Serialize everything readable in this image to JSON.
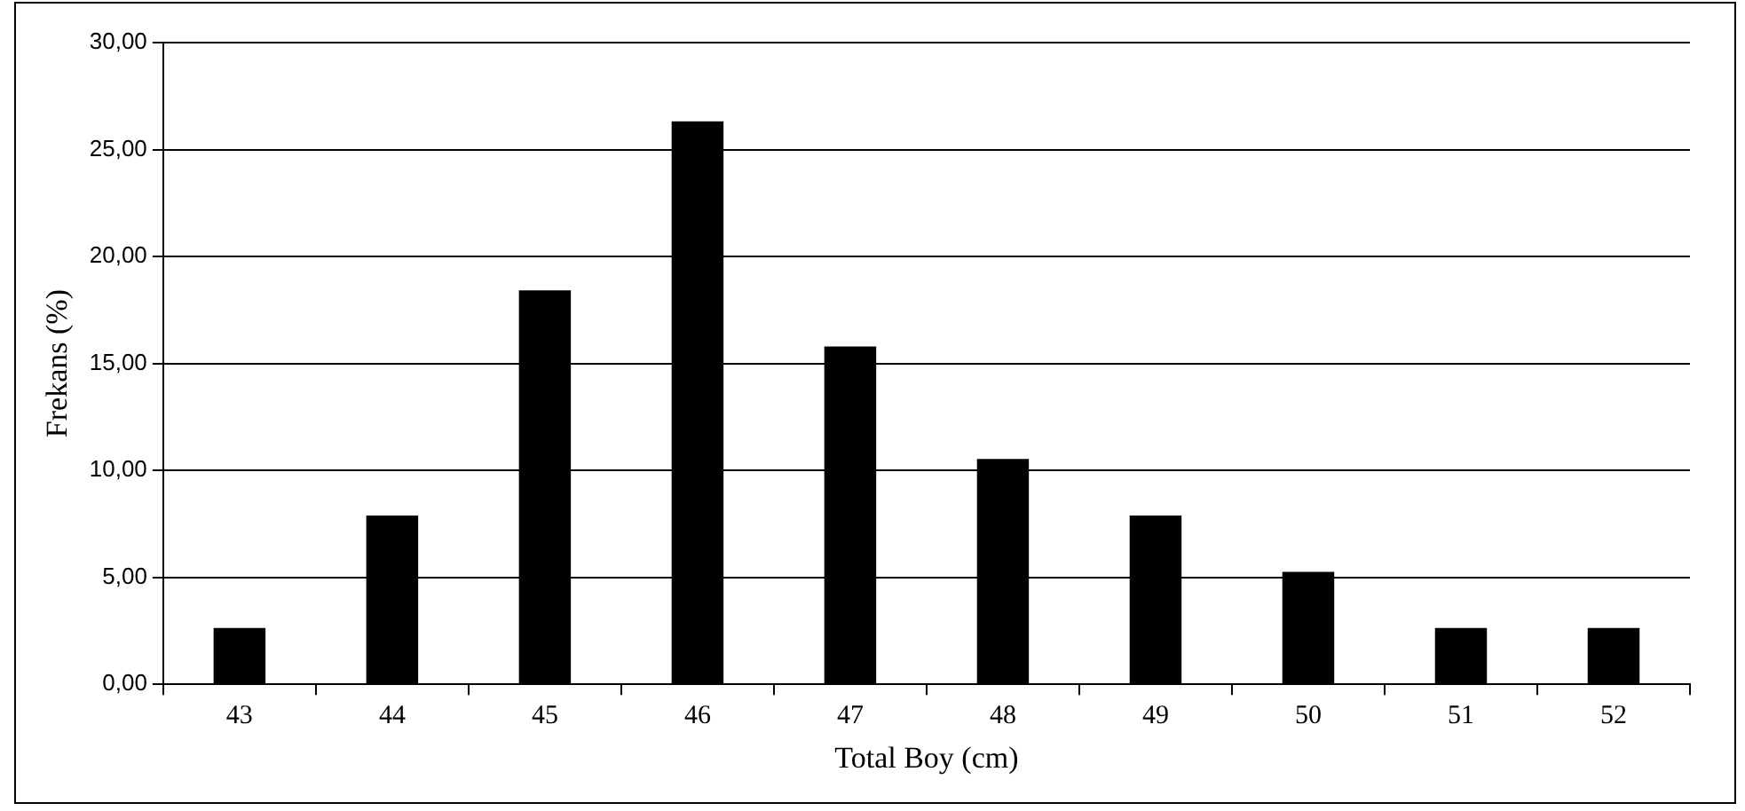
{
  "chart_data": {
    "type": "bar",
    "xlabel": "Total Boy (cm)",
    "ylabel": "Frekans (%)",
    "categories": [
      "43",
      "44",
      "45",
      "46",
      "47",
      "48",
      "49",
      "50",
      "51",
      "52"
    ],
    "values": [
      2.63,
      7.89,
      18.42,
      26.32,
      15.79,
      10.53,
      7.89,
      5.26,
      2.63,
      2.63
    ],
    "color": "#000000",
    "ylim": [
      0,
      30
    ],
    "yticks": [
      {
        "value": 0,
        "label": "0,00"
      },
      {
        "value": 5,
        "label": "5,00"
      },
      {
        "value": 10,
        "label": "10,00"
      },
      {
        "value": 15,
        "label": "15,00"
      },
      {
        "value": 20,
        "label": "20,00"
      },
      {
        "value": 25,
        "label": "25,00"
      },
      {
        "value": 30,
        "label": "30,00"
      }
    ],
    "grid": "y",
    "legend": false
  }
}
